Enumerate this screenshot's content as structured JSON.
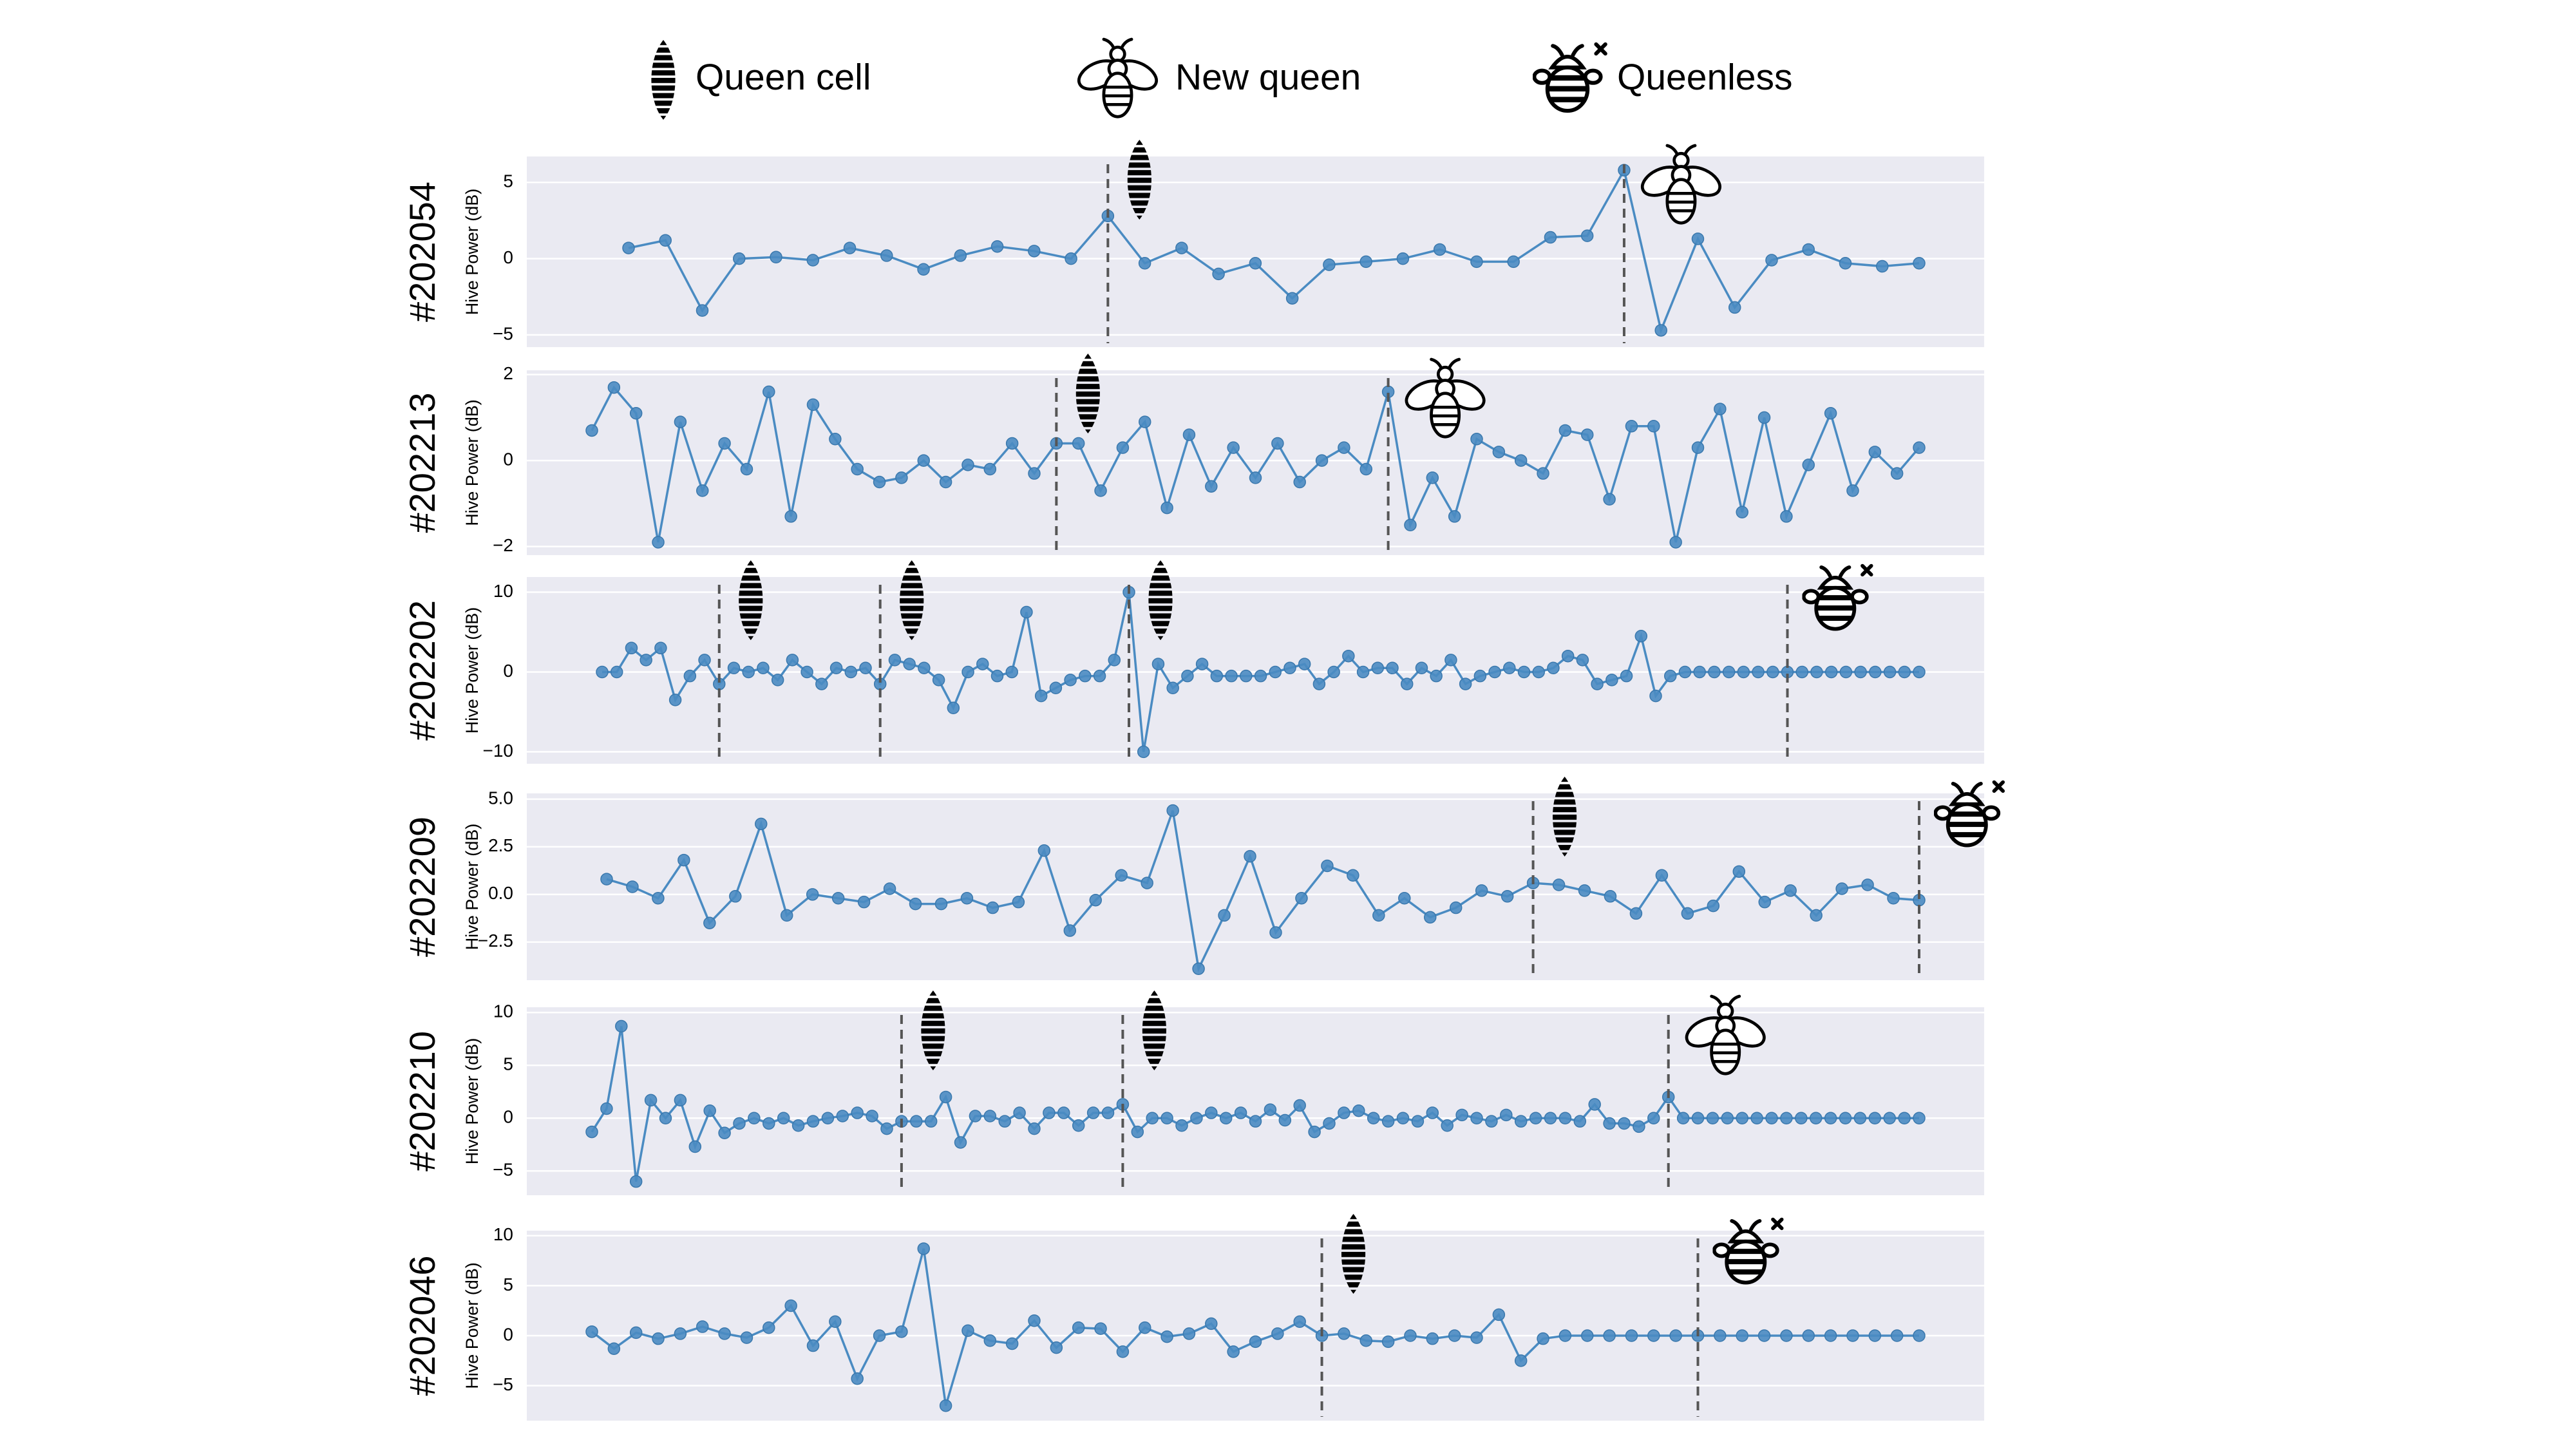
{
  "legend": {
    "queen_cell": "Queen cell",
    "new_queen": "New queen",
    "queenless": "Queenless"
  },
  "chart_data": [
    {
      "type": "line",
      "title": "#202054",
      "ylabel": "Hive Power (dB)",
      "color": "#4a8bc2",
      "grid": true,
      "values": [
        0.7,
        1.2,
        -3.4,
        0,
        0.1,
        -0.1,
        0.7,
        0.2,
        -0.7,
        0.2,
        0.8,
        0.5,
        0,
        2.8,
        -0.3,
        0.7,
        -1,
        -0.3,
        -2.6,
        -0.4,
        -0.2,
        0,
        0.6,
        -0.2,
        -0.2,
        1.4,
        1.5,
        5.8,
        -4.7,
        1.3,
        -3.2,
        -0.1,
        0.6,
        -0.3,
        -0.5,
        -0.3
      ],
      "ylim": [
        -5.8,
        6.7
      ],
      "yticks": [
        {
          "value": -5,
          "label": "−5"
        },
        0,
        5
      ],
      "events": {
        "queen_cell": [
          13
        ],
        "new_queen": [
          27
        ]
      }
    },
    {
      "type": "line",
      "title": "#202213",
      "ylabel": "Hive Power (dB)",
      "color": "#4a8bc2",
      "grid": true,
      "values": [
        0.7,
        1.7,
        1.1,
        -1.9,
        0.9,
        -0.7,
        0.4,
        -0.2,
        1.6,
        -1.3,
        1.3,
        0.5,
        -0.2,
        -0.5,
        -0.4,
        0,
        -0.5,
        -0.1,
        -0.2,
        0.4,
        -0.3,
        0.4,
        0.4,
        -0.7,
        0.3,
        0.9,
        -1.1,
        0.6,
        -0.6,
        0.3,
        -0.4,
        0.4,
        -0.5,
        0,
        0.3,
        -0.2,
        1.6,
        -1.5,
        -0.4,
        -1.3,
        0.5,
        0.2,
        0,
        -0.3,
        0.7,
        0.6,
        -0.9,
        0.8,
        0.8,
        -1.9,
        0.3,
        1.2,
        -1.2,
        1,
        -1.3,
        -0.1,
        1.1,
        -0.7,
        0.2,
        -0.3,
        0.3
      ],
      "ylim": [
        -2.2,
        2.1
      ],
      "yticks": [
        {
          "value": -2,
          "label": "−2"
        },
        0,
        2
      ],
      "events": {
        "queen_cell": [
          21
        ],
        "new_queen": [
          36
        ]
      }
    },
    {
      "type": "line",
      "title": "#202202",
      "ylabel": "Hive Power (dB)",
      "color": "#4a8bc2",
      "grid": true,
      "values": [
        0,
        0,
        3,
        1.5,
        3,
        -3.5,
        -0.5,
        1.5,
        -1.5,
        0.5,
        0,
        0.5,
        -1,
        1.5,
        0,
        -1.5,
        0.5,
        0,
        0.5,
        -1.5,
        1.5,
        1,
        0.5,
        -1,
        -4.5,
        0,
        1,
        -0.5,
        0,
        7.5,
        -3,
        -2,
        -1,
        -0.5,
        -0.5,
        1.5,
        10,
        -10,
        1,
        -2,
        -0.5,
        1,
        -0.5,
        -0.5,
        -0.5,
        -0.5,
        0,
        0.5,
        1,
        -1.5,
        0,
        2,
        0,
        0.5,
        0.5,
        -1.5,
        0.5,
        -0.5,
        1.5,
        -1.5,
        -0.5,
        0,
        0.5,
        0,
        0,
        0.5,
        2,
        1.5,
        -1.5,
        -1,
        -0.5,
        4.5,
        -3,
        -0.5,
        0,
        0,
        0,
        0,
        0,
        0,
        0,
        0,
        0,
        0,
        0,
        0,
        0,
        0,
        0,
        0,
        0
      ],
      "ylim": [
        -11.5,
        11.9
      ],
      "yticks": [
        {
          "value": -10,
          "label": "−10"
        },
        0,
        10
      ],
      "events": {
        "queen_cell": [
          8,
          19,
          36
        ],
        "queenless": [
          81
        ]
      }
    },
    {
      "type": "line",
      "title": "#202209",
      "ylabel": "Hive Power (dB)",
      "color": "#4a8bc2",
      "grid": true,
      "values": [
        0.8,
        0.4,
        -0.2,
        1.8,
        -1.5,
        -0.1,
        3.7,
        -1.1,
        0,
        -0.2,
        -0.4,
        0.3,
        -0.5,
        -0.5,
        -0.2,
        -0.7,
        -0.4,
        2.3,
        -1.9,
        -0.3,
        1,
        0.6,
        4.4,
        -3.9,
        -1.1,
        2,
        -2,
        -0.2,
        1.5,
        1,
        -1.1,
        -0.2,
        -1.2,
        -0.7,
        0.2,
        -0.1,
        0.6,
        0.5,
        0.2,
        -0.1,
        -1,
        1,
        -1,
        -0.6,
        1.2,
        -0.4,
        0.2,
        -1.1,
        0.3,
        0.5,
        -0.2,
        -0.3
      ],
      "ylim": [
        -4.5,
        5.3
      ],
      "yticks": [
        {
          "value": -2.5,
          "label": "−2.5"
        },
        {
          "value": 0,
          "label": "0.0"
        },
        2.5,
        {
          "value": 5,
          "label": "5.0"
        }
      ],
      "events": {
        "queen_cell": [
          36
        ],
        "queenless": [
          51
        ]
      }
    },
    {
      "type": "line",
      "title": "#202210",
      "ylabel": "Hive Power (dB)",
      "color": "#4a8bc2",
      "grid": true,
      "values": [
        -1.3,
        0.9,
        8.7,
        -6,
        1.7,
        0,
        1.7,
        -2.7,
        0.7,
        -1.4,
        -0.5,
        0,
        -0.5,
        0,
        -0.7,
        -0.3,
        0,
        0.2,
        0.5,
        0.2,
        -1,
        -0.3,
        -0.3,
        -0.3,
        2,
        -2.3,
        0.2,
        0.2,
        -0.3,
        0.5,
        -1,
        0.5,
        0.5,
        -0.7,
        0.5,
        0.5,
        1.3,
        -1.3,
        0,
        0,
        -0.7,
        0,
        0.5,
        0,
        0.5,
        -0.3,
        0.8,
        -0.2,
        1.2,
        -1.3,
        -0.5,
        0.5,
        0.7,
        0,
        -0.3,
        0,
        -0.3,
        0.5,
        -0.7,
        0.3,
        0,
        -0.3,
        0.3,
        -0.3,
        0,
        0,
        0,
        -0.3,
        1.3,
        -0.5,
        -0.5,
        -0.8,
        0,
        2,
        0,
        0,
        0,
        0,
        0,
        0,
        0,
        0,
        0,
        0,
        0,
        0,
        0,
        0,
        0,
        0,
        0
      ],
      "ylim": [
        -7.3,
        10.5
      ],
      "yticks": [
        {
          "value": -5,
          "label": "−5"
        },
        0,
        5,
        10
      ],
      "events": {
        "queen_cell": [
          21,
          36
        ],
        "new_queen": [
          73
        ]
      }
    },
    {
      "type": "line",
      "title": "#202046",
      "ylabel": "Hive Power (dB)",
      "color": "#4a8bc2",
      "grid": true,
      "values": [
        0.4,
        -1.3,
        0.3,
        -0.3,
        0.2,
        0.9,
        0.2,
        -0.2,
        0.8,
        3,
        -1,
        1.4,
        -4.3,
        0,
        0.4,
        8.7,
        -7,
        0.5,
        -0.5,
        -0.8,
        1.5,
        -1.2,
        0.8,
        0.7,
        -1.6,
        0.8,
        -0.1,
        0.2,
        1.2,
        -1.6,
        -0.6,
        0.2,
        1.4,
        0,
        0.2,
        -0.5,
        -0.6,
        0,
        -0.3,
        0,
        -0.2,
        2.1,
        -2.5,
        -0.3,
        0,
        0,
        0,
        0,
        0,
        0,
        0,
        0,
        0,
        0,
        0,
        0,
        0,
        0,
        0,
        0,
        0
      ],
      "ylim": [
        -8.5,
        10.5
      ],
      "yticks": [
        {
          "value": -5,
          "label": "−5"
        },
        0,
        5,
        10
      ],
      "events": {
        "queen_cell": [
          33
        ],
        "queenless": [
          50
        ]
      }
    }
  ]
}
